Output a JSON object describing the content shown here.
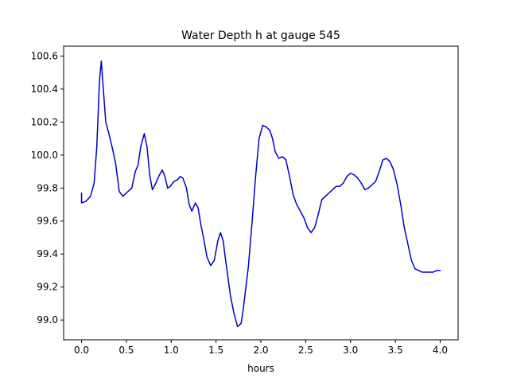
{
  "chart_data": {
    "type": "line",
    "title": "Water Depth h at gauge 545",
    "xlabel": "hours",
    "ylabel": "",
    "xlim": [
      -0.2,
      4.2
    ],
    "ylim": [
      98.88,
      100.66
    ],
    "xticks": [
      0.0,
      0.5,
      1.0,
      1.5,
      2.0,
      2.5,
      3.0,
      3.5,
      4.0
    ],
    "xtick_labels": [
      "0.0",
      "0.5",
      "1.0",
      "1.5",
      "2.0",
      "2.5",
      "3.0",
      "3.5",
      "4.0"
    ],
    "yticks": [
      99.0,
      99.2,
      99.4,
      99.6,
      99.8,
      100.0,
      100.2,
      100.4,
      100.6
    ],
    "ytick_labels": [
      "99.0",
      "99.2",
      "99.4",
      "99.6",
      "99.8",
      "100.0",
      "100.2",
      "100.4",
      "100.6"
    ],
    "grid": false,
    "legend": "none",
    "series": [
      {
        "color": "#0000cc",
        "x": [
          0.0,
          0.0,
          0.05,
          0.1,
          0.14,
          0.17,
          0.2,
          0.22,
          0.24,
          0.27,
          0.3,
          0.34,
          0.38,
          0.42,
          0.46,
          0.5,
          0.56,
          0.6,
          0.63,
          0.66,
          0.7,
          0.73,
          0.76,
          0.79,
          0.82,
          0.86,
          0.9,
          0.93,
          0.96,
          0.99,
          1.03,
          1.07,
          1.1,
          1.13,
          1.17,
          1.2,
          1.23,
          1.27,
          1.3,
          1.33,
          1.36,
          1.4,
          1.44,
          1.48,
          1.52,
          1.55,
          1.58,
          1.6,
          1.63,
          1.66,
          1.7,
          1.74,
          1.78,
          1.8,
          1.82,
          1.86,
          1.9,
          1.94,
          1.98,
          2.02,
          2.06,
          2.1,
          2.13,
          2.16,
          2.2,
          2.24,
          2.28,
          2.32,
          2.36,
          2.4,
          2.44,
          2.48,
          2.52,
          2.56,
          2.6,
          2.64,
          2.68,
          2.72,
          2.76,
          2.8,
          2.84,
          2.88,
          2.92,
          2.96,
          3.0,
          3.04,
          3.08,
          3.12,
          3.16,
          3.2,
          3.24,
          3.28,
          3.32,
          3.36,
          3.4,
          3.44,
          3.48,
          3.52,
          3.56,
          3.6,
          3.64,
          3.68,
          3.72,
          3.76,
          3.8,
          3.84,
          3.88,
          3.92,
          3.96,
          4.0
        ],
        "y": [
          99.77,
          99.71,
          99.72,
          99.75,
          99.83,
          100.05,
          100.45,
          100.57,
          100.42,
          100.2,
          100.14,
          100.05,
          99.95,
          99.78,
          99.75,
          99.77,
          99.8,
          99.9,
          99.94,
          100.05,
          100.13,
          100.05,
          99.88,
          99.79,
          99.82,
          99.87,
          99.91,
          99.87,
          99.8,
          99.81,
          99.84,
          99.85,
          99.87,
          99.86,
          99.8,
          99.7,
          99.66,
          99.71,
          99.68,
          99.58,
          99.5,
          99.38,
          99.33,
          99.36,
          99.48,
          99.53,
          99.48,
          99.39,
          99.27,
          99.15,
          99.04,
          98.96,
          98.98,
          99.05,
          99.14,
          99.32,
          99.58,
          99.86,
          100.1,
          100.18,
          100.17,
          100.15,
          100.1,
          100.02,
          99.98,
          99.99,
          99.97,
          99.87,
          99.76,
          99.7,
          99.66,
          99.62,
          99.56,
          99.53,
          99.56,
          99.64,
          99.73,
          99.75,
          99.77,
          99.79,
          99.81,
          99.81,
          99.83,
          99.87,
          99.89,
          99.88,
          99.86,
          99.83,
          99.79,
          99.8,
          99.82,
          99.84,
          99.9,
          99.97,
          99.98,
          99.96,
          99.91,
          99.82,
          99.7,
          99.56,
          99.46,
          99.36,
          99.31,
          99.3,
          99.29,
          99.29,
          99.29,
          99.29,
          99.3,
          99.3
        ]
      }
    ]
  }
}
